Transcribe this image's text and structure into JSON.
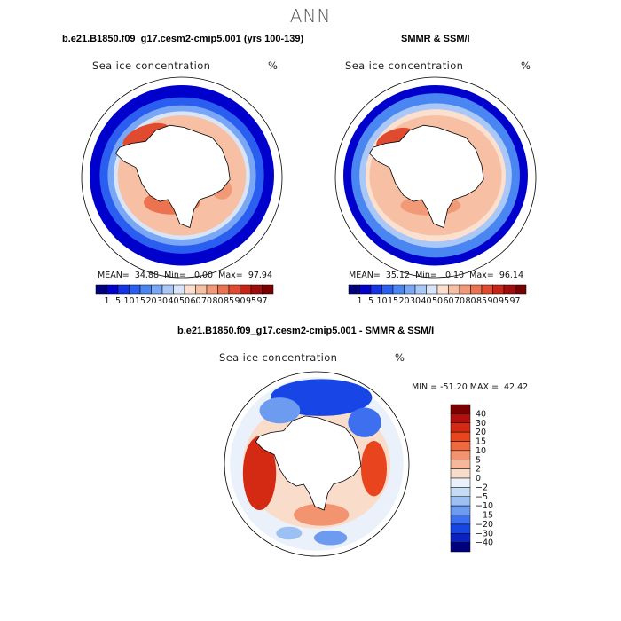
{
  "title": "ANN",
  "chart_data": [
    {
      "type": "heatmap",
      "projection": "south polar stereographic",
      "case_title": "b.e21.B1850.f09_g17.cesm2-cmip5.001 (yrs 100-139)",
      "field": "Sea ice concentration",
      "units": "%",
      "stats": {
        "mean_label": "MEAN=",
        "mean": "34.88",
        "min_label": "Min=",
        "min": "0.00",
        "max_label": "Max=",
        "max": "97.94"
      },
      "colorbar_levels": [
        "1",
        "5",
        "10",
        "15",
        "20",
        "30",
        "40",
        "50",
        "60",
        "70",
        "80",
        "85",
        "90",
        "95",
        "97"
      ],
      "colorbar_colors": [
        "#00007f",
        "#0000cc",
        "#1432e6",
        "#2a5ef0",
        "#4a86f2",
        "#7aa7f5",
        "#a9c7f7",
        "#d8e5f9",
        "#fbe0d0",
        "#f7c0a4",
        "#f29a78",
        "#ec7350",
        "#e04a2e",
        "#c82414",
        "#a00c0c",
        "#7a0000"
      ]
    },
    {
      "type": "heatmap",
      "projection": "south polar stereographic",
      "case_title": "SMMR & SSM/I",
      "field": "Sea ice concentration",
      "units": "%",
      "stats": {
        "mean_label": "MEAN=",
        "mean": "35.12",
        "min_label": "Min=",
        "min": "0.10",
        "max_label": "Max=",
        "max": "96.14"
      },
      "colorbar_levels": [
        "1",
        "5",
        "10",
        "15",
        "20",
        "30",
        "40",
        "50",
        "60",
        "70",
        "80",
        "85",
        "90",
        "95",
        "97"
      ]
    },
    {
      "type": "heatmap",
      "projection": "south polar stereographic",
      "case_title": "b.e21.B1850.f09_g17.cesm2-cmip5.001 - SMMR & SSM/I",
      "field": "Sea ice concentration",
      "units": "%",
      "stats": {
        "min_label": "MIN =",
        "min": "-51.20",
        "max_label": "MAX =",
        "max": "42.42"
      },
      "colorbar_levels": [
        "40",
        "30",
        "20",
        "15",
        "10",
        "5",
        "2",
        "0",
        "−2",
        "−5",
        "−10",
        "−15",
        "−20",
        "−30",
        "−40"
      ],
      "colorbar_colors": [
        "#7a0000",
        "#b01010",
        "#d42a14",
        "#e8451e",
        "#ee6a3e",
        "#f29470",
        "#f6b89a",
        "#fadccb",
        "#eaf1fb",
        "#c6dbf6",
        "#9cc0f2",
        "#6d9bef",
        "#3d6fee",
        "#1846e6",
        "#0a22c0",
        "#00007f"
      ]
    }
  ]
}
